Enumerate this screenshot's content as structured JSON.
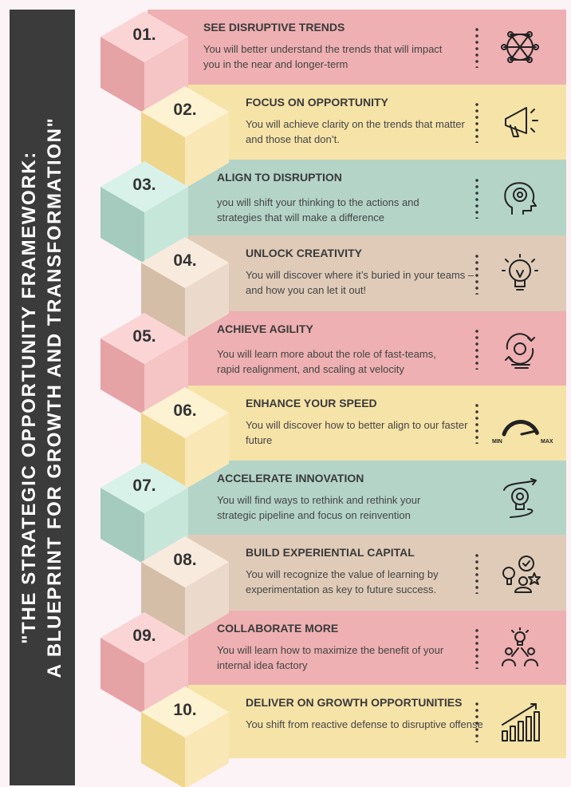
{
  "title_line1": "\"THE STRATEGIC OPPORTUNITY FRAMEWORK:",
  "title_line2": "A BLUEPRINT FOR GROWTH AND TRANSFORMATION\"",
  "colors": {
    "pink": "#eeb0b2",
    "yellow": "#f6e3a8",
    "teal": "#b4d4c8",
    "beige": "#dfcbb8",
    "sidebar": "#3b3b3b"
  },
  "items": [
    {
      "number": "01.",
      "heading": "SEE DISRUPTIVE TRENDS",
      "text": "You will better understand the trends that will impact you in the near and longer-term",
      "icon": "network-icon",
      "color": "pink"
    },
    {
      "number": "02.",
      "heading": "FOCUS ON OPPORTUNITY",
      "text": "You will achieve clarity on the trends that matter and those that don’t.",
      "icon": "megaphone-icon",
      "color": "yellow"
    },
    {
      "number": "03.",
      "heading": "ALIGN TO DISRUPTION",
      "text": "you will shift your thinking to the actions and strategies that will make a difference",
      "icon": "head-gear-icon",
      "color": "teal"
    },
    {
      "number": "04.",
      "heading": "UNLOCK CREATIVITY",
      "text": "You will discover where it’s buried in your teams – and how you can let it out!",
      "icon": "lightbulb-icon",
      "color": "beige"
    },
    {
      "number": "05.",
      "heading": "ACHIEVE AGILITY",
      "text": "You will learn more about the role of fast-teams, rapid realignment, and scaling at velocity",
      "icon": "cycle-gear-icon",
      "color": "pink"
    },
    {
      "number": "06.",
      "heading": "ENHANCE YOUR SPEED",
      "text": "You will discover how to better align to our faster future",
      "icon": "speedometer-icon",
      "color": "yellow",
      "gauge_min": "MIN",
      "gauge_max": "MAX"
    },
    {
      "number": "07.",
      "heading": "ACCELERATE INNOVATION",
      "text": "You will find ways to rethink and rethink your strategic pipeline and focus on reinvention",
      "icon": "innovation-bulb-icon",
      "color": "teal"
    },
    {
      "number": "08.",
      "heading": "BUILD EXPERIENTIAL CAPITAL",
      "text": "You will recognize the value of learning by experimentation as key to future success.",
      "icon": "experience-icon",
      "color": "beige"
    },
    {
      "number": "09.",
      "heading": "COLLABORATE MORE",
      "text": "You will learn how to maximize the benefit of your internal idea factory",
      "icon": "collaboration-icon",
      "color": "pink"
    },
    {
      "number": "10.",
      "heading": "DELIVER ON GROWTH OPPORTUNITIES",
      "text": "You shift from reactive defense to disruptive offense",
      "icon": "growth-chart-icon",
      "color": "yellow"
    }
  ]
}
